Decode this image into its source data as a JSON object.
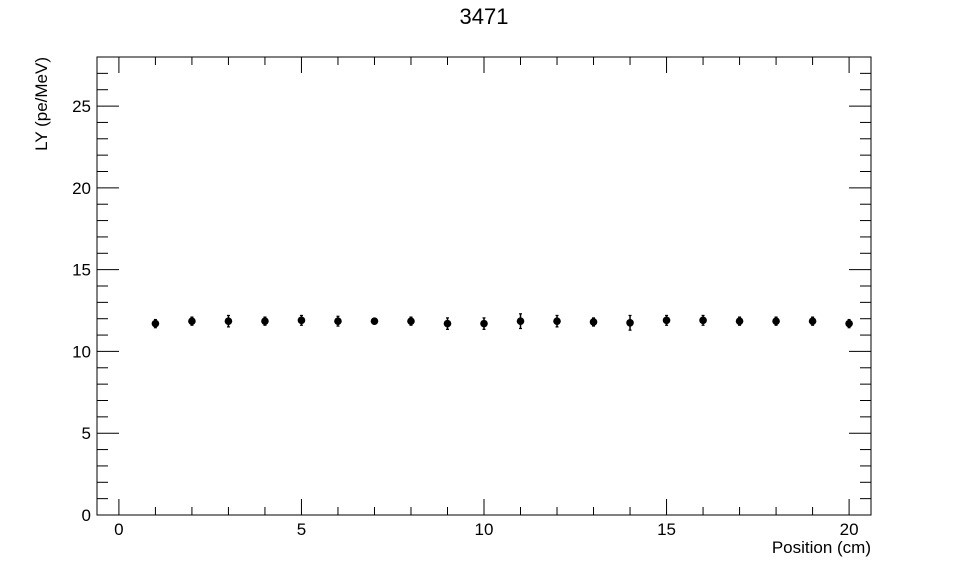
{
  "chart_data": {
    "type": "scatter",
    "title": "3471",
    "xlabel": "Position (cm)",
    "ylabel": "LY (pe/MeV)",
    "xlim": [
      -0.6,
      20.6
    ],
    "ylim": [
      0,
      28
    ],
    "x_ticks": [
      0,
      5,
      10,
      15,
      20
    ],
    "y_ticks": [
      0,
      5,
      10,
      15,
      20,
      25
    ],
    "grid": false,
    "marker_color": "#000000",
    "points": [
      {
        "x": 1,
        "y": 11.7,
        "err": 0.25
      },
      {
        "x": 2,
        "y": 11.85,
        "err": 0.25
      },
      {
        "x": 3,
        "y": 11.85,
        "err": 0.35
      },
      {
        "x": 4,
        "y": 11.85,
        "err": 0.25
      },
      {
        "x": 5,
        "y": 11.9,
        "err": 0.3
      },
      {
        "x": 6,
        "y": 11.85,
        "err": 0.3
      },
      {
        "x": 7,
        "y": 11.85,
        "err": 0.15
      },
      {
        "x": 8,
        "y": 11.85,
        "err": 0.25
      },
      {
        "x": 9,
        "y": 11.7,
        "err": 0.35
      },
      {
        "x": 10,
        "y": 11.7,
        "err": 0.35
      },
      {
        "x": 11,
        "y": 11.85,
        "err": 0.45
      },
      {
        "x": 12,
        "y": 11.85,
        "err": 0.35
      },
      {
        "x": 13,
        "y": 11.8,
        "err": 0.25
      },
      {
        "x": 14,
        "y": 11.75,
        "err": 0.45
      },
      {
        "x": 15,
        "y": 11.9,
        "err": 0.3
      },
      {
        "x": 16,
        "y": 11.9,
        "err": 0.3
      },
      {
        "x": 17,
        "y": 11.85,
        "err": 0.25
      },
      {
        "x": 18,
        "y": 11.85,
        "err": 0.25
      },
      {
        "x": 19,
        "y": 11.85,
        "err": 0.25
      },
      {
        "x": 20,
        "y": 11.7,
        "err": 0.25
      }
    ]
  }
}
